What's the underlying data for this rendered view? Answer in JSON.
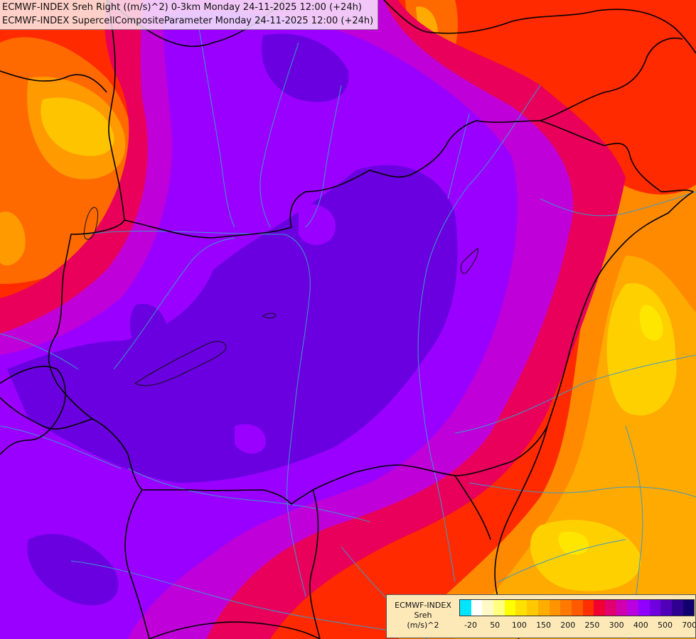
{
  "title": {
    "line1": "ECMWF-INDEX Sreh Right ((m/s)^2) 0-3km Monday 24-11-2025 12:00 (+24h)",
    "line2": "ECMWF-INDEX SupercellCompositeParameter Monday 24-11-2025 12:00 (+24h)"
  },
  "legend": {
    "source": "ECMWF-INDEX",
    "param": "Sreh",
    "unit": "(m/s)^2",
    "colors": [
      "#00e5ff",
      "#ffffff",
      "#fff9c8",
      "#ffff80",
      "#ffff00",
      "#ffe000",
      "#ffc800",
      "#ffae00",
      "#ff9400",
      "#ff7800",
      "#ff5a00",
      "#ff3000",
      "#f00030",
      "#e00070",
      "#d000b0",
      "#b800e0",
      "#9000ff",
      "#7000e0",
      "#5000b8",
      "#300090",
      "#100070"
    ],
    "tick_labels": [
      "-20",
      "50",
      "100",
      "150",
      "200",
      "250",
      "300",
      "400",
      "500",
      "700"
    ]
  },
  "palette": {
    "violet_dark": "#6a00e0",
    "violet": "#9000ff",
    "magenta": "#b800e0",
    "crimson": "#e0006a",
    "red": "#ff2a00",
    "orange": "#ff7800",
    "amber": "#ffaa00",
    "yellow": "#ffe000",
    "border": "#000000",
    "river": "#3a9ac9"
  }
}
